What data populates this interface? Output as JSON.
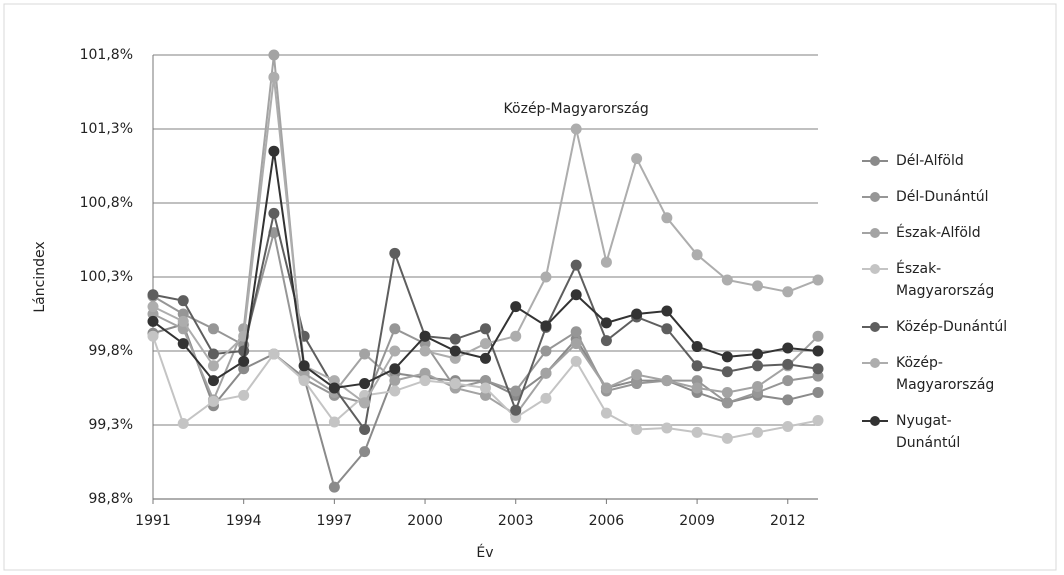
{
  "chart_data": {
    "type": "line",
    "x_label": "Év",
    "y_label": "Láncindex",
    "annotation": "Közép-Magyarország",
    "x": [
      1991,
      1992,
      1993,
      1994,
      1995,
      1996,
      1997,
      1998,
      1999,
      2000,
      2001,
      2002,
      2003,
      2004,
      2005,
      2006,
      2007,
      2008,
      2009,
      2010,
      2011,
      2012,
      2013
    ],
    "xlim": [
      1991,
      2013
    ],
    "xticks": [
      1991,
      1994,
      1997,
      2000,
      2003,
      2006,
      2009,
      2012
    ],
    "ylim": [
      98.8,
      101.8
    ],
    "yticks": [
      {
        "value": 98.8,
        "label": "98,8%"
      },
      {
        "value": 99.3,
        "label": "99,3%"
      },
      {
        "value": 99.8,
        "label": "99,8%"
      },
      {
        "value": 100.3,
        "label": "100,3%"
      },
      {
        "value": 100.8,
        "label": "100,8%"
      },
      {
        "value": 101.3,
        "label": "101,3%"
      },
      {
        "value": 101.8,
        "label": "101,8%"
      }
    ],
    "grid": true,
    "series": [
      {
        "name": "Dél-Alföld",
        "color": "#8a8a8a",
        "values": [
          99.92,
          99.98,
          99.43,
          99.68,
          99.78,
          99.62,
          98.88,
          99.12,
          99.65,
          99.62,
          99.6,
          99.6,
          99.5,
          99.65,
          99.88,
          99.55,
          99.6,
          99.6,
          99.52,
          99.45,
          99.5,
          99.47,
          99.52
        ]
      },
      {
        "name": "Dél-Dunántúl",
        "color": "#969696",
        "values": [
          100.17,
          100.05,
          99.95,
          99.84,
          100.6,
          99.61,
          99.5,
          99.45,
          99.95,
          99.85,
          99.55,
          99.6,
          99.53,
          99.8,
          99.93,
          99.53,
          99.58,
          99.6,
          99.6,
          99.45,
          99.52,
          99.6,
          99.63
        ]
      },
      {
        "name": "Észak-Alföld",
        "color": "#a3a3a3",
        "values": [
          100.05,
          99.95,
          99.47,
          99.95,
          101.8,
          99.65,
          99.52,
          99.78,
          99.6,
          99.65,
          99.55,
          99.5,
          99.37,
          99.65,
          99.85,
          99.55,
          99.64,
          99.6,
          99.55,
          99.52,
          99.56,
          99.7,
          99.9
        ]
      },
      {
        "name": "Észak-Magyarország",
        "color": "#c4c4c4",
        "values": [
          99.9,
          99.31,
          99.46,
          99.5,
          99.78,
          99.6,
          99.32,
          99.5,
          99.53,
          99.6,
          99.58,
          99.55,
          99.35,
          99.48,
          99.73,
          99.38,
          99.27,
          99.28,
          99.25,
          99.21,
          99.25,
          99.29,
          99.33
        ]
      },
      {
        "name": "Közép-Dunántúl",
        "color": "#5e5e5e",
        "values": [
          100.18,
          100.14,
          99.78,
          99.8,
          100.73,
          99.9,
          99.55,
          99.27,
          100.46,
          99.9,
          99.88,
          99.95,
          99.4,
          99.96,
          100.38,
          99.87,
          100.03,
          99.95,
          99.7,
          99.66,
          99.7,
          99.71,
          99.68
        ]
      },
      {
        "name": "Közép-Magyarország",
        "color": "#adadad",
        "values": [
          100.1,
          100.0,
          99.7,
          99.9,
          101.65,
          99.7,
          99.6,
          99.45,
          99.8,
          99.8,
          99.75,
          99.85,
          99.9,
          100.3,
          101.3,
          100.4,
          101.1,
          100.7,
          100.45,
          100.28,
          100.24,
          100.2,
          100.28
        ]
      },
      {
        "name": "Nyugat-Dunántúl",
        "color": "#333333",
        "values": [
          100.0,
          99.85,
          99.6,
          99.73,
          101.15,
          99.7,
          99.55,
          99.58,
          99.68,
          99.9,
          99.8,
          99.75,
          100.1,
          99.97,
          100.18,
          99.99,
          100.05,
          100.07,
          99.83,
          99.76,
          99.78,
          99.82,
          99.8
        ]
      }
    ]
  }
}
